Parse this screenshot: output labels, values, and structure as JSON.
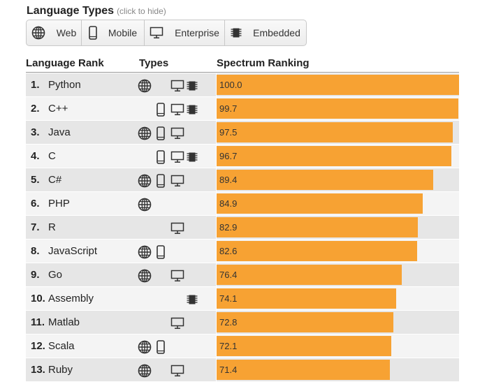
{
  "header": {
    "title": "Language Types",
    "hint": "(click to hide)"
  },
  "filters": [
    {
      "label": "Web",
      "icon": "globe-icon"
    },
    {
      "label": "Mobile",
      "icon": "phone-icon"
    },
    {
      "label": "Enterprise",
      "icon": "monitor-icon"
    },
    {
      "label": "Embedded",
      "icon": "chip-icon"
    }
  ],
  "columns": {
    "rank": "Language Rank",
    "types": "Types",
    "spectrum": "Spectrum Ranking"
  },
  "colors": {
    "bar": "#f7a233",
    "row_odd": "#e6e6e6",
    "row_even": "#f4f4f4"
  },
  "chart_data": {
    "type": "bar",
    "orientation": "horizontal",
    "xlim": [
      0,
      100
    ],
    "rows": [
      {
        "rank": "1.",
        "name": "Python",
        "value": 100.0,
        "label": "100.0",
        "types": [
          "web",
          "enterprise",
          "embedded"
        ]
      },
      {
        "rank": "2.",
        "name": "C++",
        "value": 99.7,
        "label": "99.7",
        "types": [
          "mobile",
          "enterprise",
          "embedded"
        ]
      },
      {
        "rank": "3.",
        "name": "Java",
        "value": 97.5,
        "label": "97.5",
        "types": [
          "web",
          "mobile",
          "enterprise"
        ]
      },
      {
        "rank": "4.",
        "name": "C",
        "value": 96.7,
        "label": "96.7",
        "types": [
          "mobile",
          "enterprise",
          "embedded"
        ]
      },
      {
        "rank": "5.",
        "name": "C#",
        "value": 89.4,
        "label": "89.4",
        "types": [
          "web",
          "mobile",
          "enterprise"
        ]
      },
      {
        "rank": "6.",
        "name": "PHP",
        "value": 84.9,
        "label": "84.9",
        "types": [
          "web"
        ]
      },
      {
        "rank": "7.",
        "name": "R",
        "value": 82.9,
        "label": "82.9",
        "types": [
          "enterprise"
        ]
      },
      {
        "rank": "8.",
        "name": "JavaScript",
        "value": 82.6,
        "label": "82.6",
        "types": [
          "web",
          "mobile"
        ]
      },
      {
        "rank": "9.",
        "name": "Go",
        "value": 76.4,
        "label": "76.4",
        "types": [
          "web",
          "enterprise"
        ]
      },
      {
        "rank": "10.",
        "name": "Assembly",
        "value": 74.1,
        "label": "74.1",
        "types": [
          "embedded"
        ]
      },
      {
        "rank": "11.",
        "name": "Matlab",
        "value": 72.8,
        "label": "72.8",
        "types": [
          "enterprise"
        ]
      },
      {
        "rank": "12.",
        "name": "Scala",
        "value": 72.1,
        "label": "72.1",
        "types": [
          "web",
          "mobile"
        ]
      },
      {
        "rank": "13.",
        "name": "Ruby",
        "value": 71.4,
        "label": "71.4",
        "types": [
          "web",
          "enterprise"
        ]
      }
    ]
  }
}
